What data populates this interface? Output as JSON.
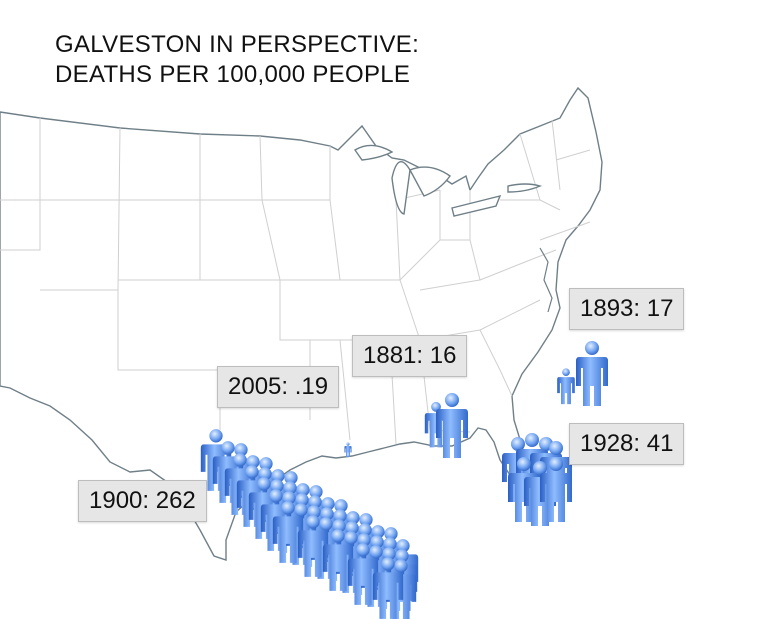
{
  "title": {
    "line1": "GALVESTON IN PERSPECTIVE:",
    "line2": "DEATHS PER 100,000 PEOPLE"
  },
  "colors": {
    "figure_light": "#9ec6ff",
    "figure_mid": "#4f8ae8",
    "figure_dark": "#2a5fc4",
    "coast_line": "#6f7f88",
    "state_line": "#cfcfcf",
    "label_bg": "#e6e6e6"
  },
  "icon": "person-icon",
  "markers": [
    {
      "id": "1893",
      "label": "1893: 17"
    },
    {
      "id": "1881",
      "label": "1881: 16"
    },
    {
      "id": "2005",
      "label": "2005: .19"
    },
    {
      "id": "1928",
      "label": "1928: 41"
    },
    {
      "id": "1900",
      "label": "1900: 262"
    }
  ]
}
